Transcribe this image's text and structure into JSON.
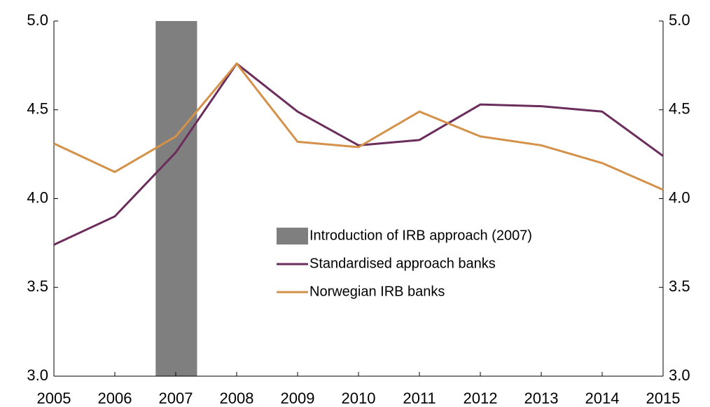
{
  "chart_data": {
    "type": "line",
    "x": [
      2005,
      2006,
      2007,
      2008,
      2009,
      2010,
      2011,
      2012,
      2013,
      2014,
      2015
    ],
    "xlim": [
      2005,
      2015
    ],
    "xticks": [
      2005,
      2006,
      2007,
      2008,
      2009,
      2010,
      2011,
      2012,
      2013,
      2014,
      2015
    ],
    "ylim": [
      3,
      5
    ],
    "yticks": [
      {
        "value": 3,
        "label": "3.0"
      },
      {
        "value": 3.5,
        "label": "3.5"
      },
      {
        "value": 4,
        "label": "4.0"
      },
      {
        "value": 4.5,
        "label": "4.5"
      },
      {
        "value": 5,
        "label": "5.0"
      }
    ],
    "y2lim": [
      3,
      5
    ],
    "y2ticks": [
      {
        "value": 3,
        "label": "3.0"
      },
      {
        "value": 3.5,
        "label": "3.5"
      },
      {
        "value": 4,
        "label": "4.0"
      },
      {
        "value": 4.5,
        "label": "4.5"
      },
      {
        "value": 5,
        "label": "5.0"
      }
    ],
    "band": {
      "name": "Introduction of IRB approach (2007)",
      "x": [
        2006.67,
        2007.35
      ],
      "color": "#7f7f7f"
    },
    "series": [
      {
        "name": "Standardised approach banks",
        "color": "#6b2d5c",
        "values": [
          3.74,
          3.9,
          4.26,
          4.76,
          4.49,
          4.3,
          4.33,
          4.53,
          4.52,
          4.49,
          4.24
        ]
      },
      {
        "name": "Norwegian IRB banks",
        "color": "#d4914a",
        "values": [
          4.31,
          4.15,
          4.35,
          4.76,
          4.32,
          4.29,
          4.49,
          4.35,
          4.3,
          4.2,
          4.05
        ]
      }
    ],
    "legend": "center"
  }
}
